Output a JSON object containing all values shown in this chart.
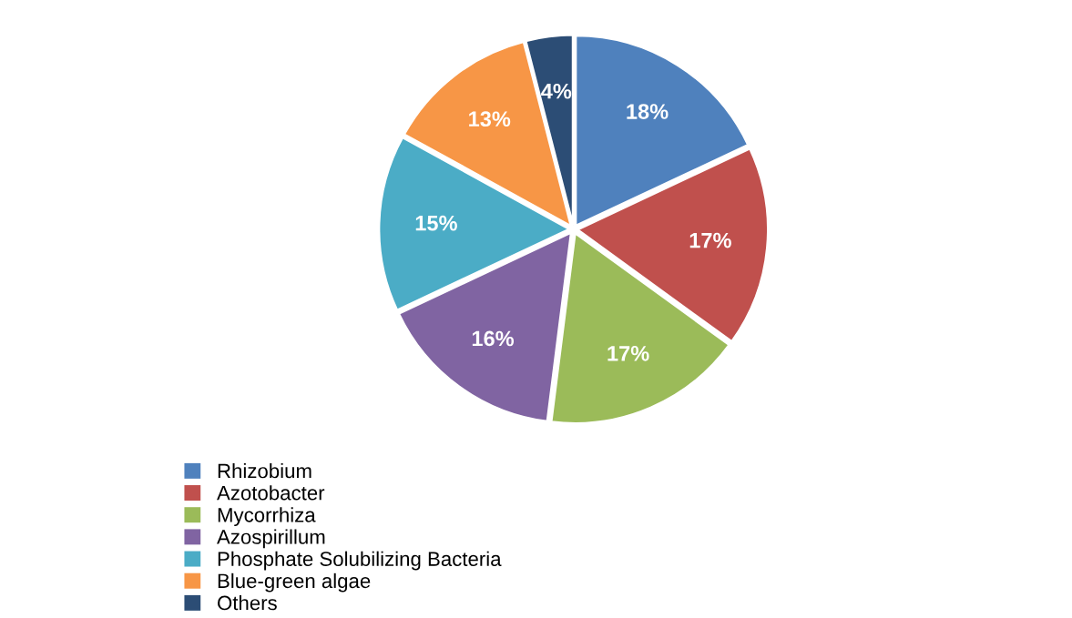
{
  "chart_data": {
    "type": "pie",
    "categories": [
      "Rhizobium",
      "Azotobacter",
      "Mycorrhiza",
      "Azospirillum",
      "Phosphate Solubilizing Bacteria",
      "Blue-green algae",
      "Others"
    ],
    "values": [
      18,
      17,
      17,
      16,
      15,
      13,
      4
    ],
    "colors": [
      "#4f81bd",
      "#c0504d",
      "#9bbb59",
      "#8064a2",
      "#4bacc6",
      "#f79646",
      "#2c4d75"
    ],
    "value_labels": [
      "18%",
      "17%",
      "17%",
      "16%",
      "15%",
      "13%",
      "4%"
    ],
    "legend": "bottom"
  }
}
